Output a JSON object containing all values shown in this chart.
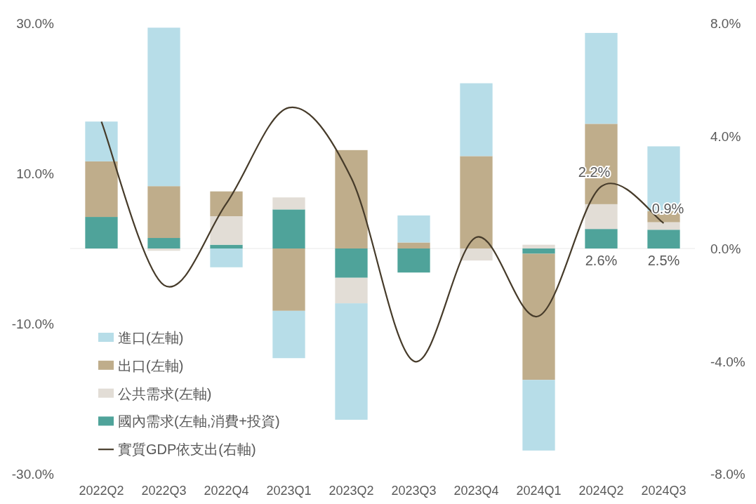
{
  "chart_data": {
    "type": "bar",
    "stacked": true,
    "legend": "bottom left",
    "categories": [
      "2022Q2",
      "2022Q3",
      "2022Q4",
      "2023Q1",
      "2023Q2",
      "2023Q3",
      "2023Q4",
      "2024Q1",
      "2024Q2",
      "2024Q3"
    ],
    "series": [
      {
        "name": "國內需求(左軸,消費+投資)",
        "color": "#4fa39a",
        "values": [
          4.2,
          1.4,
          0.5,
          5.2,
          -3.9,
          -3.2,
          0,
          -0.7,
          2.6,
          2.5
        ],
        "value_labels": [
          null,
          null,
          null,
          null,
          null,
          null,
          null,
          null,
          "2.6%",
          "2.5%"
        ]
      },
      {
        "name": "公共需求(左軸)",
        "color": "#e2ddd6",
        "values": [
          0,
          -0.3,
          3.8,
          1.6,
          -3.4,
          0,
          -1.6,
          0.5,
          3.3,
          1.0
        ]
      },
      {
        "name": "出口(左軸)",
        "color": "#bfad8b",
        "values": [
          7.4,
          6.9,
          3.3,
          -8.3,
          13.1,
          0.8,
          12.3,
          -16.8,
          10.7,
          1.5
        ]
      },
      {
        "name": "進口(左軸)",
        "color": "#b7dde8",
        "values": [
          5.3,
          21.1,
          -2.5,
          -6.3,
          -15.5,
          3.6,
          9.7,
          -9.4,
          12.1,
          8.6
        ]
      },
      {
        "name": "實質GDP依支出(右軸)",
        "type": "line",
        "axis": "y2",
        "color": "#463b2a",
        "values": [
          4.5,
          -1.3,
          1.6,
          5.0,
          2.5,
          -4.0,
          0.4,
          -2.4,
          2.2,
          0.9
        ],
        "value_labels": [
          null,
          null,
          null,
          null,
          null,
          null,
          null,
          null,
          "2.2%",
          "0.9%"
        ]
      }
    ],
    "ylim": [
      -30,
      30
    ],
    "yticks": [
      {
        "value": -30,
        "label": "-30.0%"
      },
      {
        "value": -10,
        "label": "-10.0%"
      },
      {
        "value": 10,
        "label": "10.0%"
      },
      {
        "value": 30,
        "label": "30.0%"
      }
    ],
    "y2lim": [
      -8,
      8
    ],
    "y2ticks": [
      {
        "value": -8,
        "label": "-8.0%"
      },
      {
        "value": -4,
        "label": "-4.0%"
      },
      {
        "value": 0,
        "label": "0.0%"
      },
      {
        "value": 4,
        "label": "4.0%"
      },
      {
        "value": 8,
        "label": "8.0%"
      }
    ]
  }
}
